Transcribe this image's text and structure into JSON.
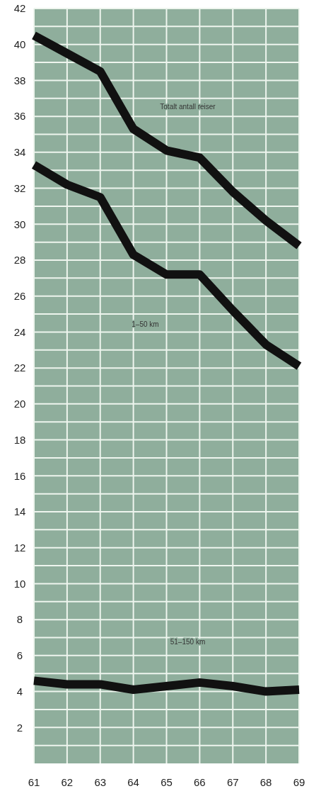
{
  "chart_data": {
    "type": "line",
    "x": [
      61,
      62,
      63,
      64,
      65,
      66,
      67,
      68,
      69
    ],
    "series": [
      {
        "color": "#111111",
        "values": [
          40.5,
          39.5,
          38.5,
          35.3,
          34.1,
          33.7,
          31.8,
          30.2,
          28.8
        ]
      },
      {
        "color": "#111111",
        "values": [
          33.3,
          32.2,
          31.5,
          28.3,
          27.2,
          27.2,
          25.2,
          23.3,
          22.1
        ]
      },
      {
        "color": "#111111",
        "values": [
          4.6,
          4.4,
          4.4,
          4.1,
          4.3,
          4.5,
          4.3,
          4.0,
          4.1
        ]
      }
    ],
    "xlim": [
      61,
      69
    ],
    "xticks": [
      61,
      62,
      63,
      64,
      65,
      66,
      67,
      68,
      69
    ],
    "ylim": [
      0,
      42
    ],
    "yticks": [
      {
        "value": 1,
        "label": null
      },
      2,
      {
        "value": 3,
        "label": null
      },
      4,
      {
        "value": 5,
        "label": null
      },
      6,
      {
        "value": 7,
        "label": null
      },
      8,
      {
        "value": 9,
        "label": null
      },
      10,
      {
        "value": 11,
        "label": null
      },
      12,
      {
        "value": 13,
        "label": null
      },
      14,
      {
        "value": 15,
        "label": null
      },
      16,
      {
        "value": 17,
        "label": null
      },
      18,
      {
        "value": 19,
        "label": null
      },
      20,
      {
        "value": 21,
        "label": null
      },
      22,
      {
        "value": 23,
        "label": null
      },
      24,
      {
        "value": 25,
        "label": null
      },
      26,
      {
        "value": 27,
        "label": null
      },
      28,
      {
        "value": 29,
        "label": null
      },
      30,
      {
        "value": 31,
        "label": null
      },
      32,
      {
        "value": 33,
        "label": null
      },
      34,
      {
        "value": 35,
        "label": null
      },
      36,
      {
        "value": 37,
        "label": null
      },
      38,
      {
        "value": 39,
        "label": null
      },
      40,
      {
        "value": 41,
        "label": null
      },
      42
    ],
    "grid": true,
    "marker": "none",
    "line_style": "solid",
    "annotations": [
      "Totalt antall reiser",
      "1–50 km",
      "51–150 km"
    ]
  }
}
